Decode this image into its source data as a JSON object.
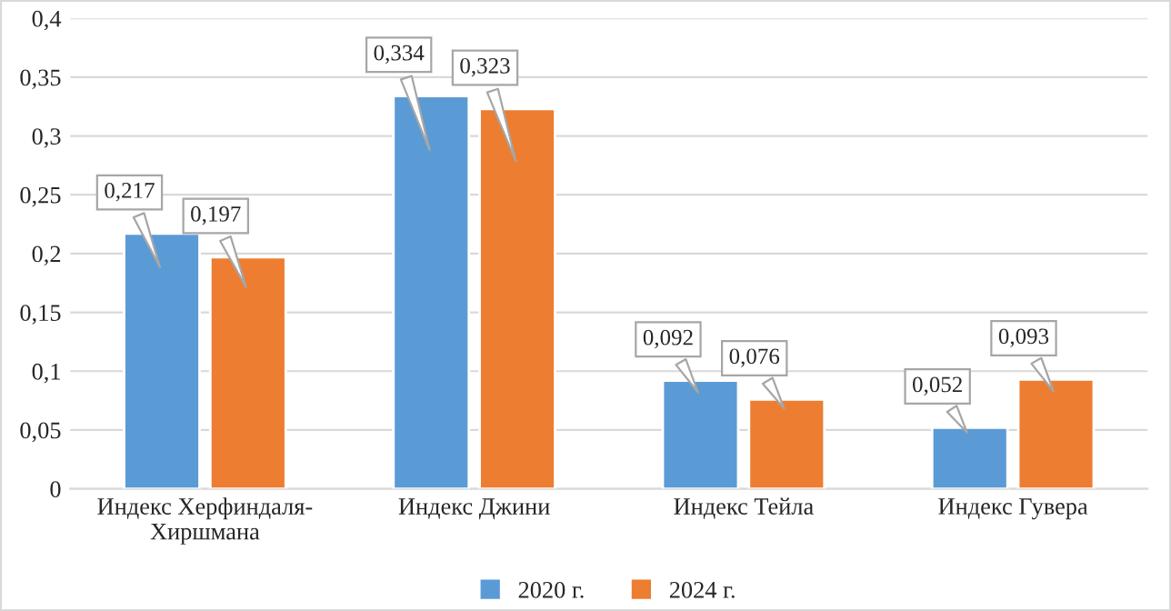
{
  "chart_data": {
    "type": "bar",
    "categories": [
      "Индекс Херфиндаля-Хиршмана",
      "Индекс Джини",
      "Индекс Тейла",
      "Индекс Гувера"
    ],
    "series": [
      {
        "name": "2020 г.",
        "color": "#5b9bd5",
        "values": [
          0.217,
          0.334,
          0.092,
          0.052
        ],
        "value_labels": [
          "0,217",
          "0,334",
          "0,092",
          "0,052"
        ]
      },
      {
        "name": "2024 г.",
        "color": "#ed7d31",
        "values": [
          0.197,
          0.323,
          0.076,
          0.093
        ],
        "value_labels": [
          "0,197",
          "0,323",
          "0,076",
          "0,093"
        ]
      }
    ],
    "ylim": [
      0,
      0.4
    ],
    "yticks": [
      0,
      {
        "value": 0.05,
        "label": "0,05"
      },
      {
        "value": 0.1,
        "label": "0,1"
      },
      {
        "value": 0.15,
        "label": "0,15"
      },
      {
        "value": 0.2,
        "label": "0,2"
      },
      {
        "value": 0.25,
        "label": "0,25"
      },
      {
        "value": 0.3,
        "label": "0,3"
      },
      {
        "value": 0.35,
        "label": "0,35"
      },
      {
        "value": 0.4,
        "label": "0,4"
      }
    ],
    "grid": "y",
    "legend": "bottom"
  }
}
